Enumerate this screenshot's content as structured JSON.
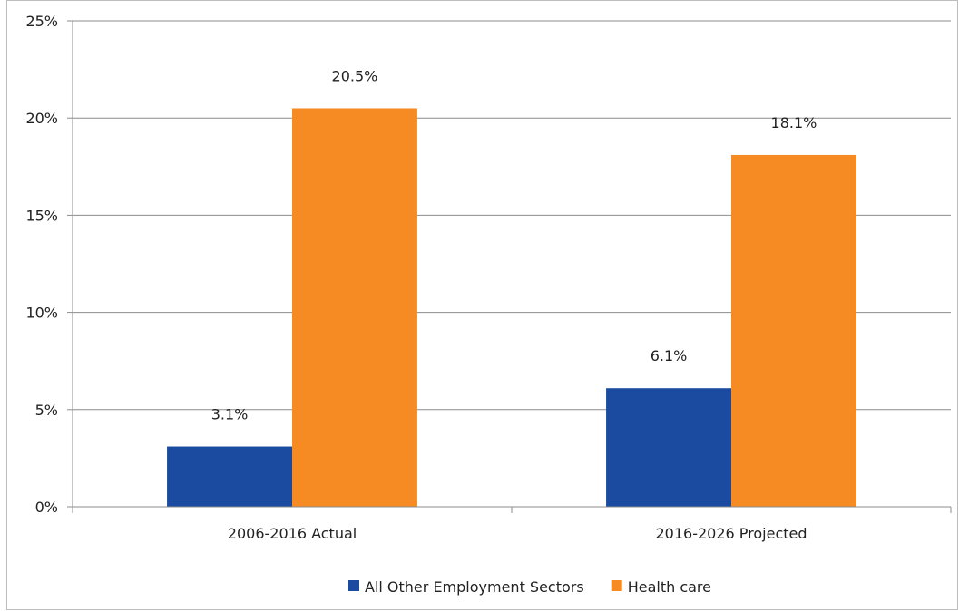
{
  "chart_data": {
    "type": "bar",
    "title": "",
    "xlabel": "",
    "ylabel": "",
    "categories": [
      "2006-2016 Actual",
      "2016-2026 Projected"
    ],
    "series": [
      {
        "name": "All Other Employment Sectors",
        "color": "#1a4ba0",
        "values": [
          3.1,
          6.1
        ],
        "labels": [
          "3.1%",
          "6.1%"
        ]
      },
      {
        "name": "Health care",
        "color": "#f58b22",
        "values": [
          20.5,
          18.1
        ],
        "labels": [
          "20.5%",
          "18.1%"
        ]
      }
    ],
    "ylim": [
      0,
      25
    ],
    "yticks": [
      0,
      5,
      10,
      15,
      20,
      25
    ],
    "ytick_labels": [
      "0%",
      "5%",
      "10%",
      "15%",
      "20%",
      "25%"
    ],
    "grid": true,
    "legend_position": "bottom"
  }
}
